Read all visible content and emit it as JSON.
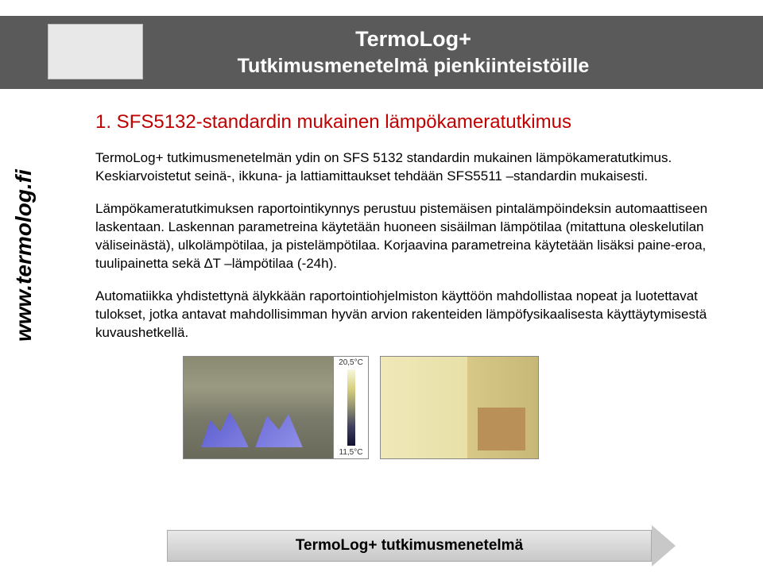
{
  "header": {
    "title": "TermoLog+",
    "subtitle": "Tutkimusmenetelmä pienkiinteistöille"
  },
  "sidebar": {
    "url": "www.termolog.fi"
  },
  "content": {
    "section_title": "1. SFS5132-standardin mukainen lämpökameratutkimus",
    "para1": "TermoLog+ tutkimusmenetelmän ydin on SFS 5132 standardin mukainen lämpökameratutkimus. Keskiarvoistetut seinä-, ikkuna- ja lattiamittaukset tehdään SFS5511 –standardin mukaisesti.",
    "para2": "Lämpökameratutkimuksen raportointikynnys perustuu pistemäisen pintalämpöindeksin automaattiseen laskentaan. Laskennan parametreina käytetään huoneen sisäilman lämpötilaa (mitattuna oleskelutilan väliseinästä), ulkolämpötilaa, ja pistelämpötilaa. Korjaavina parametreina käytetään lisäksi paine-eroa, tuulipainetta sekä ∆T –lämpötilaa (-24h).",
    "para3": "Automatiikka yhdistettynä älykkään raportointiohjelmiston käyttöön mahdollistaa nopeat ja luotettavat tulokset, jotka antavat mahdollisimman hyvän arvion rakenteiden lämpöfysikaalisesta käyttäytymisestä kuvaushetkellä."
  },
  "thermal": {
    "scale_max": "20,5°C",
    "scale_min": "11,5°C",
    "colorbar_colors": [
      "#f7f7e0",
      "#d8d080",
      "#909070",
      "#404060",
      "#101030"
    ]
  },
  "footer": {
    "text": "TermoLog+ tutkimusmenetelmä"
  },
  "colors": {
    "header_bg": "#5a5a5a",
    "header_text": "#ffffff",
    "title_red": "#c00000",
    "page_bg": "#ffffff"
  }
}
